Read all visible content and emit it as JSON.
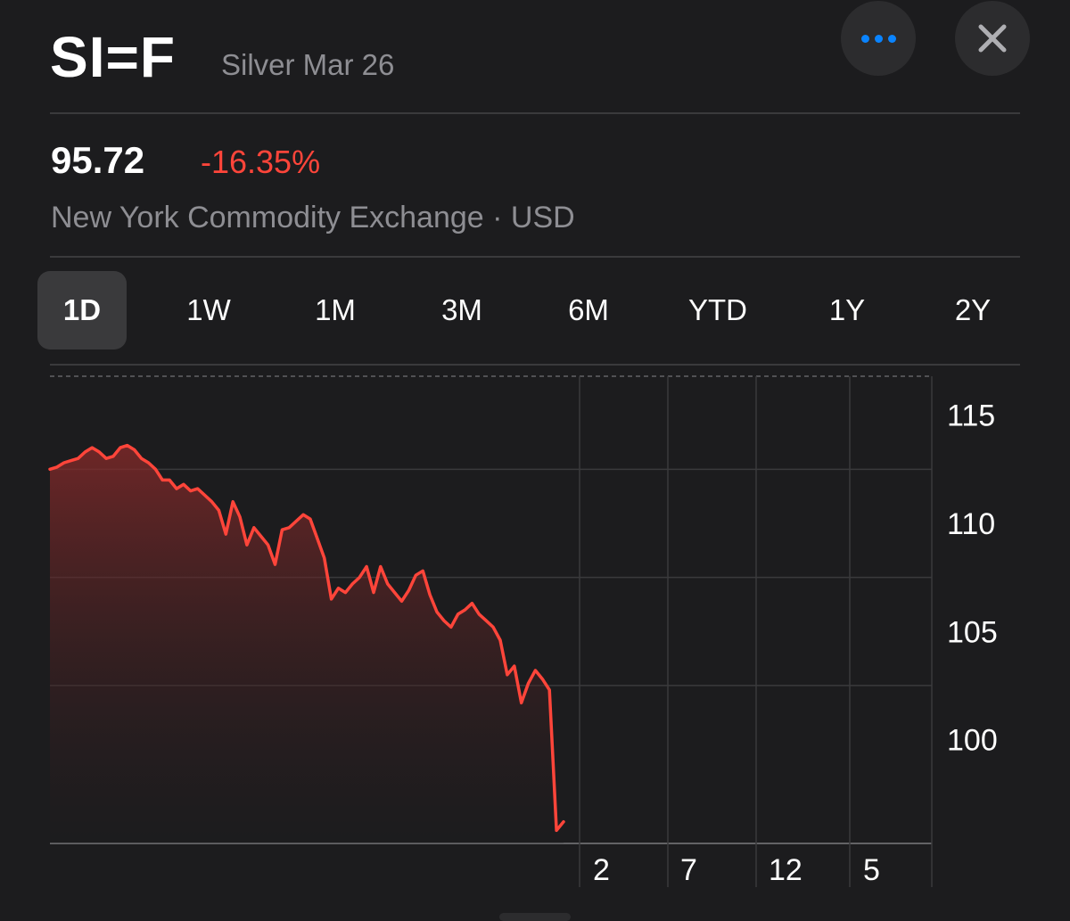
{
  "header": {
    "symbol": "SI=F",
    "name": "Silver Mar 26",
    "more_icon": "ellipsis-icon",
    "close_icon": "close-x-icon"
  },
  "quote": {
    "price": "95.72",
    "change_percent": "-16.35%",
    "exchange": "New York Commodity Exchange · USD"
  },
  "ranges": [
    {
      "label": "1D",
      "active": true
    },
    {
      "label": "1W",
      "active": false
    },
    {
      "label": "1M",
      "active": false
    },
    {
      "label": "3M",
      "active": false
    },
    {
      "label": "6M",
      "active": false
    },
    {
      "label": "YTD",
      "active": false
    },
    {
      "label": "1Y",
      "active": false
    },
    {
      "label": "2Y",
      "active": false
    }
  ],
  "colors": {
    "background": "#1c1c1e",
    "negative": "#ff453a",
    "accent": "#0a84ff",
    "secondary_text": "#8e8e93"
  },
  "chart_data": {
    "type": "area",
    "ylim": [
      95.2,
      116.8
    ],
    "y_ticks": [
      115,
      110,
      105,
      100
    ],
    "x_tick_labels": [
      "2",
      "7",
      "12",
      "5"
    ],
    "reference_line": 116.8,
    "series": [
      {
        "values": [
          112.5,
          112.6,
          112.8,
          112.9,
          113.0,
          113.3,
          113.5,
          113.3,
          113.0,
          113.1,
          113.5,
          113.6,
          113.4,
          113.0,
          112.8,
          112.5,
          112.0,
          112.0,
          111.6,
          111.8,
          111.5,
          111.6,
          111.3,
          111.0,
          110.6,
          109.5,
          111.0,
          110.3,
          109.0,
          109.8,
          109.4,
          109.0,
          108.1,
          109.7,
          109.8,
          110.1,
          110.4,
          110.2,
          109.3,
          108.4,
          106.5,
          107.0,
          106.8,
          107.2,
          107.5,
          108.0,
          106.8,
          108.0,
          107.2,
          106.8,
          106.4,
          106.9,
          107.6,
          107.8,
          106.7,
          105.9,
          105.5,
          105.2,
          105.8,
          106.0,
          106.3,
          105.8,
          105.5,
          105.2,
          104.6,
          103.0,
          103.4,
          101.7,
          102.6,
          103.2,
          102.8,
          102.3,
          95.8,
          96.2
        ]
      }
    ]
  }
}
